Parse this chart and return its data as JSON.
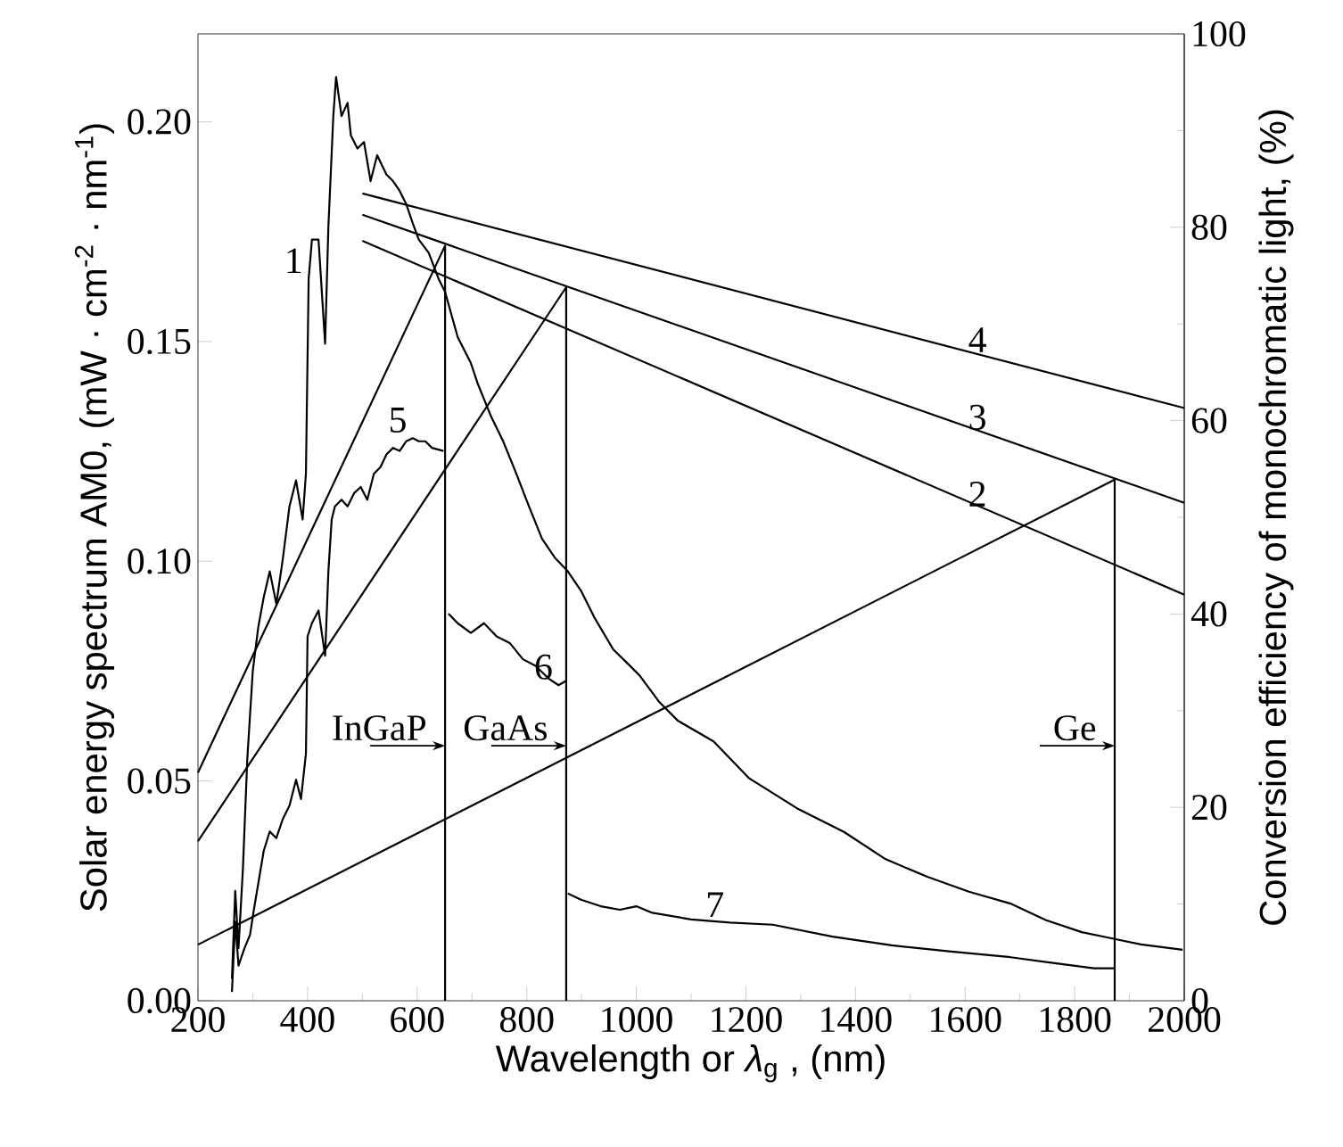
{
  "chart_data": {
    "type": "line",
    "xlabel": "Wavelength or *λ*$_{g}$ , (nm)",
    "ylabel": "Solar energy spectrum AM0, (mW · cm$^{-2}$ · nm$^{-1}$)",
    "y2label": "Conversion efficiency of monochromatic light, (%)",
    "xlim": [
      200,
      2000
    ],
    "xticks": [
      200,
      {
        "value": 300,
        "label": null
      },
      400,
      {
        "value": 500,
        "label": null
      },
      600,
      {
        "value": 700,
        "label": null
      },
      800,
      {
        "value": 900,
        "label": null
      },
      1000,
      {
        "value": 1100,
        "label": null
      },
      1200,
      {
        "value": 1300,
        "label": null
      },
      1400,
      {
        "value": 1500,
        "label": null
      },
      1600,
      {
        "value": 1700,
        "label": null
      },
      1800,
      {
        "value": 1900,
        "label": null
      },
      2000
    ],
    "ylim": [
      0,
      0.22
    ],
    "yticks": [
      {
        "value": 0,
        "label": "0.00"
      },
      {
        "value": 0.05,
        "label": "0.05"
      },
      {
        "value": 0.1,
        "label": "0.10"
      },
      {
        "value": 0.15,
        "label": "0.15"
      },
      {
        "value": 0.2,
        "label": "0.20"
      }
    ],
    "y2lim": [
      0,
      100
    ],
    "y2ticks": [
      0,
      {
        "value": 10,
        "label": null
      },
      20,
      {
        "value": 30,
        "label": null
      },
      40,
      {
        "value": 50,
        "label": null
      },
      60,
      {
        "value": 70,
        "label": null
      },
      80,
      {
        "value": 90,
        "label": null
      },
      100
    ],
    "series": [
      {
        "color": "#000000",
        "x": [
          262,
          268,
          274,
          282,
          290,
          300,
          310,
          320,
          331,
          343,
          355,
          367,
          379,
          391,
          397,
          402,
          408,
          420,
          432,
          438,
          447,
          452,
          462,
          473,
          479,
          491,
          503,
          515,
          527,
          544,
          556,
          568,
          580,
          592,
          603,
          621,
          639,
          651,
          674,
          698,
          710,
          734,
          757,
          781,
          804,
          828,
          852,
          875,
          899,
          923,
          958,
          982,
          1006,
          1041,
          1076,
          1141,
          1206,
          1293,
          1379,
          1455,
          1531,
          1607,
          1683,
          1748,
          1813,
          1867,
          1921,
          1997
        ],
        "values": [
          0.005,
          0.025,
          0.012,
          0.03,
          0.055,
          0.075,
          0.085,
          0.0918,
          0.0977,
          0.0903,
          0.1007,
          0.1125,
          0.1184,
          0.1095,
          0.1199,
          0.1643,
          0.1732,
          0.1732,
          0.1495,
          0.1761,
          0.2013,
          0.2102,
          0.2013,
          0.2043,
          0.1969,
          0.1939,
          0.1954,
          0.1865,
          0.1924,
          0.188,
          0.1865,
          0.1843,
          0.1813,
          0.1769,
          0.1732,
          0.1702,
          0.1643,
          0.1613,
          0.151,
          0.1451,
          0.1406,
          0.1332,
          0.1273,
          0.1199,
          0.1125,
          0.1051,
          0.1007,
          0.0977,
          0.0933,
          0.0873,
          0.0799,
          0.077,
          0.074,
          0.0681,
          0.0637,
          0.059,
          0.0506,
          0.0438,
          0.0384,
          0.0322,
          0.0282,
          0.0248,
          0.0221,
          0.0183,
          0.0156,
          0.0142,
          0.0128,
          0.0116
        ]
      },
      {
        "color": "#000000",
        "x": [
          262,
          268,
          274,
          285,
          295,
          302,
          320,
          331,
          343,
          355,
          367,
          379,
          388,
          397,
          400,
          408,
          420,
          432,
          438,
          444,
          450,
          462,
          473,
          485,
          497,
          509,
          521,
          533,
          544,
          556,
          568,
          580,
          592,
          603,
          615,
          627,
          648
        ],
        "values": [
          0.002,
          0.018,
          0.008,
          0.012,
          0.015,
          0.0207,
          0.0341,
          0.0385,
          0.037,
          0.0414,
          0.0444,
          0.0503,
          0.0459,
          0.0562,
          0.0829,
          0.0859,
          0.0888,
          0.0785,
          0.0977,
          0.1095,
          0.1125,
          0.114,
          0.1125,
          0.1155,
          0.1169,
          0.114,
          0.1199,
          0.1214,
          0.1243,
          0.1258,
          0.1251,
          0.1273,
          0.128,
          0.1273,
          0.1273,
          0.1258,
          0.1251
        ]
      },
      {
        "color": "#000000",
        "x": [
          657,
          674,
          698,
          722,
          745,
          769,
          793,
          816,
          840,
          858,
          872
        ],
        "values": [
          0.0881,
          0.0859,
          0.0837,
          0.0859,
          0.0829,
          0.0814,
          0.0777,
          0.0762,
          0.0733,
          0.0718,
          0.0728
        ]
      },
      {
        "color": "#000000",
        "x": [
          875,
          899,
          935,
          970,
          1000,
          1029,
          1100,
          1171,
          1249,
          1358,
          1466,
          1575,
          1683,
          1748,
          1835,
          1873
        ],
        "values": [
          0.0244,
          0.023,
          0.0215,
          0.0207,
          0.0215,
          0.02,
          0.0185,
          0.0178,
          0.0173,
          0.0146,
          0.0126,
          0.0112,
          0.0099,
          0.0088,
          0.0074,
          0.0074
        ]
      },
      {
        "color": "#000000",
        "axis": "y2",
        "x": [
          500,
          2000
        ],
        "values": [
          83.5,
          61.3
        ]
      },
      {
        "color": "#000000",
        "axis": "y2",
        "x": [
          500,
          2000
        ],
        "values": [
          81.3,
          51.5
        ]
      },
      {
        "color": "#000000",
        "axis": "y2",
        "x": [
          500,
          2000
        ],
        "values": [
          78.6,
          42
        ]
      },
      {
        "color": "#000000",
        "axis": "y2",
        "x": [
          200,
          651,
          651
        ],
        "values": [
          23.6,
          78.1,
          0
        ]
      },
      {
        "color": "#000000",
        "axis": "y2",
        "x": [
          200,
          872,
          872
        ],
        "values": [
          16.5,
          73.8,
          0
        ]
      },
      {
        "color": "#000000",
        "axis": "y2",
        "x": [
          200,
          1873,
          1873
        ],
        "values": [
          5.8,
          53.9,
          0
        ]
      }
    ],
    "annotations": [
      {
        "text": "1",
        "x": 402,
        "y": 0.1643
      },
      {
        "text": "5",
        "x": 592,
        "y": 0.128
      },
      {
        "text": "6",
        "x": 858,
        "y": 0.0718
      },
      {
        "text": "7",
        "x": 1171,
        "y": 0.0178
      },
      {
        "text": "4",
        "x": 1650,
        "y": 0.1463
      },
      {
        "text": "3",
        "x": 1650,
        "y": 0.1286
      },
      {
        "text": "2",
        "x": 1650,
        "y": 0.1112
      },
      {
        "text": "InGaP",
        "x": 651,
        "y": 0.058
      },
      {
        "text": "GaAs",
        "x": 872,
        "y": 0.058
      },
      {
        "text": "Ge",
        "x": 1873,
        "y": 0.058
      }
    ]
  }
}
